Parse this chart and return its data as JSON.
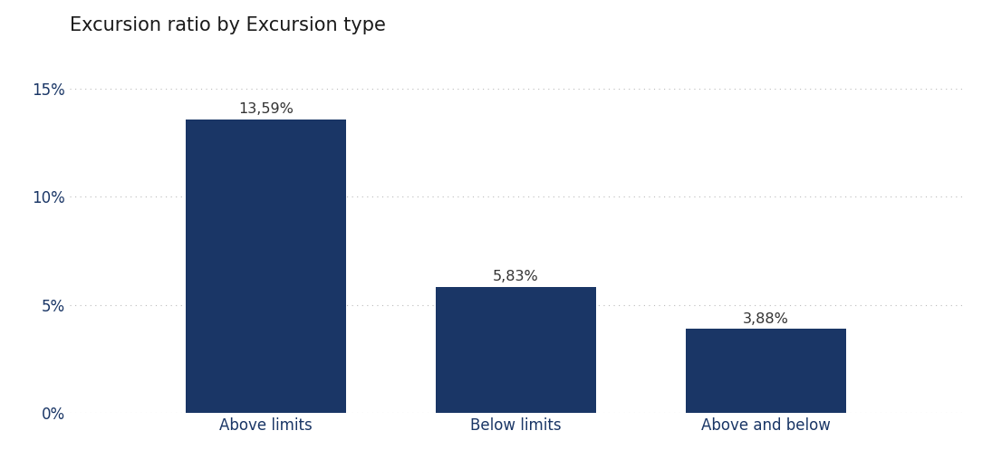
{
  "title": "Excursion ratio by Excursion type",
  "categories": [
    "Above limits",
    "Below limits",
    "Above and below"
  ],
  "values": [
    13.59,
    5.83,
    3.88
  ],
  "labels": [
    "13,59%",
    "5,83%",
    "3,88%"
  ],
  "bar_color": "#1a3666",
  "title_color": "#1a1a1a",
  "tick_label_color": "#1a3666",
  "bar_label_color": "#333333",
  "ylim": [
    0,
    16.5
  ],
  "yticks": [
    0,
    5,
    10,
    15
  ],
  "ytick_labels": [
    "0%",
    "5%",
    "10%",
    "15%"
  ],
  "background_color": "#ffffff",
  "title_fontsize": 15,
  "tick_fontsize": 12,
  "bar_label_fontsize": 11.5,
  "grid_color": "#bbbbbb",
  "bar_positions": [
    0.22,
    0.5,
    0.78
  ],
  "bar_width": 0.18,
  "xlim": [
    0.0,
    1.0
  ]
}
